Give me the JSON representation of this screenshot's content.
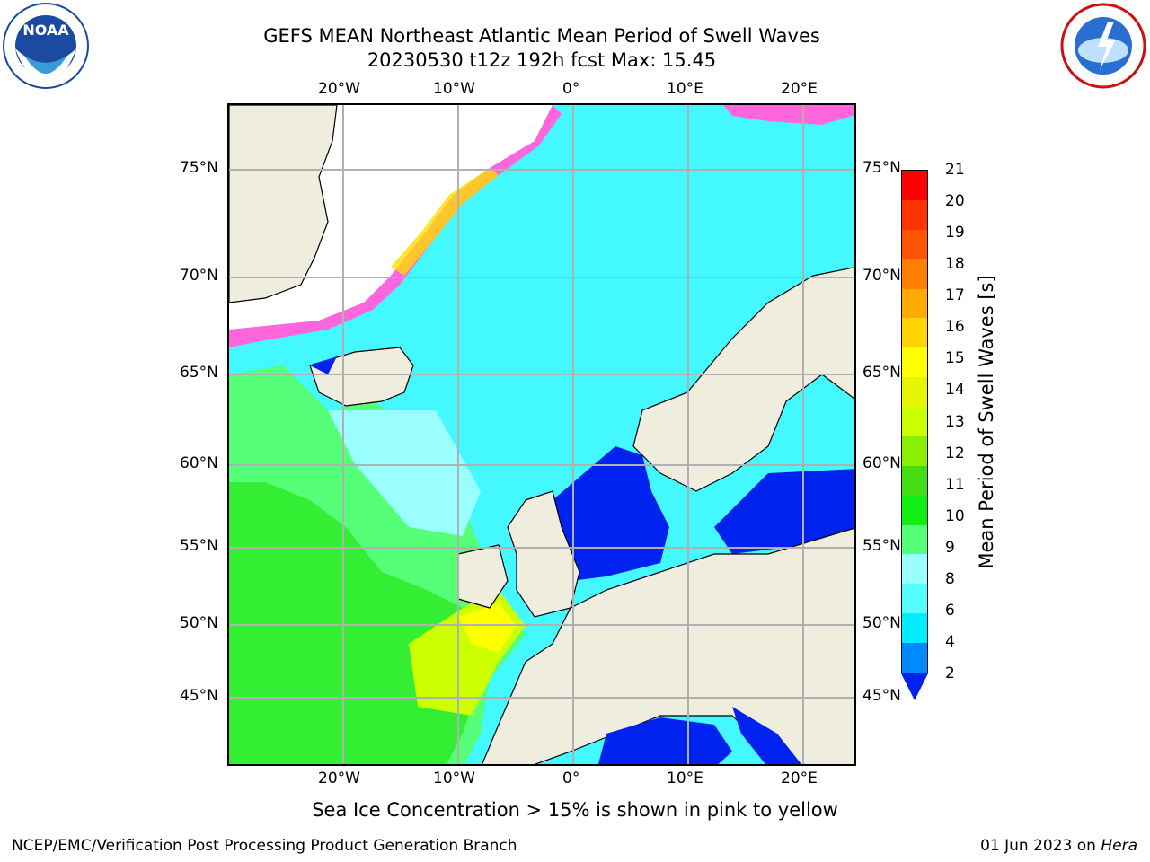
{
  "title_line1": "GEFS MEAN Northeast Atlantic Mean Period of Swell Waves",
  "title_line2": "20230530 t12z 192h fcst   Max: 15.45",
  "lon_labels": [
    "20°W",
    "10°W",
    "0°",
    "10°E",
    "20°E"
  ],
  "lat_labels": [
    "75°N",
    "70°N",
    "65°N",
    "60°N",
    "55°N",
    "50°N",
    "45°N"
  ],
  "colorbar": {
    "title": "Mean Period of Swell Waves [s]",
    "ticks": [
      "21",
      "20",
      "19",
      "18",
      "17",
      "16",
      "15",
      "14",
      "13",
      "12",
      "11",
      "10",
      "9",
      "8",
      "6",
      "4",
      "2"
    ],
    "colors": [
      "#ff0000",
      "#ff3300",
      "#ff5500",
      "#ff7f00",
      "#ffaa00",
      "#ffd400",
      "#ffff00",
      "#e6f500",
      "#ccff00",
      "#88f000",
      "#44dd11",
      "#11ee11",
      "#55ff77",
      "#99ffff",
      "#55ffff",
      "#00eeff",
      "#0088ff"
    ]
  },
  "map_colors": {
    "land": "#efeddd",
    "ocean_cyan": "#44f8ff",
    "deep_blue": "#0022ee",
    "green": "#33ee33",
    "light_green": "#55ff77",
    "ice_pink": "#ff66dd",
    "ice_yellow": "#ffdd00"
  },
  "note": "Sea Ice Concentration > 15% is shown in pink to yellow",
  "credit": "NCEP/EMC/Verification Post Processing Product Generation Branch",
  "date_prefix": "01 Jun 2023 on ",
  "date_host": "Hera",
  "logos": {
    "left": "NOAA",
    "right": "NATIONAL WEATHER SERVICE"
  }
}
